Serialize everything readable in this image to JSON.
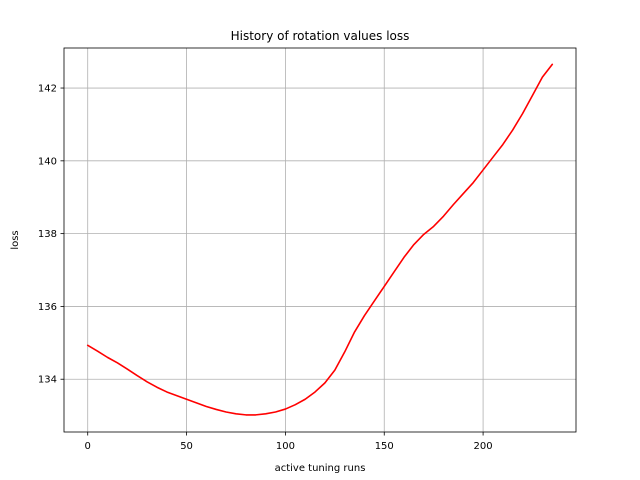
{
  "chart_data": {
    "type": "line",
    "title": "History of rotation values loss",
    "xlabel": "active tuning runs",
    "ylabel": "loss",
    "xlim": [
      -12,
      247
    ],
    "ylim": [
      132.55,
      143.1
    ],
    "xticks": [
      0,
      50,
      100,
      150,
      200
    ],
    "yticks": [
      134,
      136,
      138,
      140,
      142
    ],
    "grid": true,
    "colors": {
      "line": "#ff0000"
    },
    "series": [
      {
        "x": [
          0,
          5,
          10,
          15,
          20,
          25,
          30,
          35,
          40,
          45,
          50,
          55,
          60,
          65,
          70,
          75,
          80,
          85,
          90,
          95,
          100,
          105,
          110,
          115,
          120,
          125,
          130,
          135,
          140,
          145,
          150,
          155,
          160,
          165,
          170,
          175,
          180,
          185,
          190,
          195,
          200,
          205,
          210,
          215,
          220,
          225,
          230,
          235
        ],
        "values": [
          134.93,
          134.77,
          134.6,
          134.45,
          134.28,
          134.1,
          133.93,
          133.78,
          133.65,
          133.55,
          133.45,
          133.35,
          133.25,
          133.17,
          133.1,
          133.05,
          133.02,
          133.02,
          133.05,
          133.1,
          133.18,
          133.3,
          133.45,
          133.65,
          133.9,
          134.25,
          134.75,
          135.3,
          135.75,
          136.15,
          136.55,
          136.95,
          137.35,
          137.7,
          137.98,
          138.2,
          138.48,
          138.8,
          139.1,
          139.4,
          139.75,
          140.1,
          140.45,
          140.85,
          141.3,
          141.8,
          142.3,
          142.65
        ]
      }
    ]
  }
}
